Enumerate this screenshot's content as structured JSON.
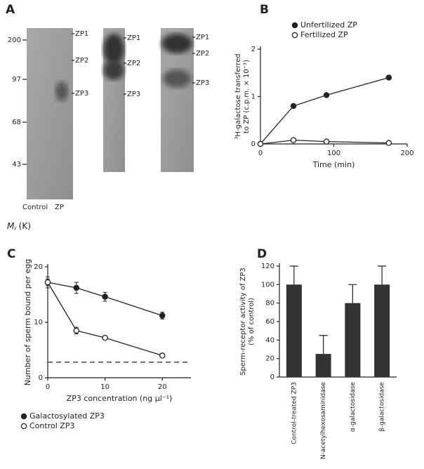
{
  "gel": {
    "label": "A",
    "mw_markers": [
      200,
      97,
      68,
      43
    ],
    "lanes": [
      {
        "bands": [
          "ZP1",
          "ZP2",
          "ZP3"
        ]
      },
      {
        "bands": [
          "ZP1",
          "ZP2",
          "ZP3"
        ]
      },
      {
        "bands": [
          "ZP1",
          "ZP2",
          "ZP3"
        ]
      }
    ],
    "lane_labels": [
      "Control",
      "ZP"
    ],
    "axis_symbol": "M",
    "axis_subscript": "r",
    "axis_unit": "(K)"
  },
  "chart_data": [
    {
      "type": "line",
      "label": "B",
      "xlabel": "Time (min)",
      "ylabel": [
        "³H-galactose transferred",
        "to ZP (c.p.m. × 10⁻³)"
      ],
      "x": [
        0,
        45,
        90,
        175
      ],
      "xlim": [
        0,
        200
      ],
      "xticks": [
        0,
        100,
        200
      ],
      "ylim": [
        0,
        2
      ],
      "yticks": [
        0,
        1,
        2
      ],
      "series": [
        {
          "name": "Unfertilized ZP",
          "color": "#222222",
          "marker": "filled",
          "values": [
            0,
            0.8,
            1.03,
            1.4
          ]
        },
        {
          "name": "Fertilized ZP",
          "color": "#222222",
          "marker": "open",
          "values": [
            0,
            0.08,
            0.05,
            0.02
          ]
        }
      ]
    },
    {
      "type": "line",
      "label": "C",
      "xlabel": "ZP3 concentration (ng µl⁻¹)",
      "ylabel": [
        "Number of sperm bound per egg"
      ],
      "x": [
        0,
        5,
        10,
        20
      ],
      "xlim": [
        0,
        25
      ],
      "xticks": [
        0,
        10,
        20
      ],
      "ylim": [
        0,
        20
      ],
      "yticks": [
        0,
        10,
        20
      ],
      "reference_line": {
        "y": 2.8,
        "style": "dashed"
      },
      "series": [
        {
          "name": "Galactosylated ZP3",
          "color": "#222222",
          "marker": "filled",
          "values": [
            17.2,
            16.2,
            14.6,
            11.2
          ],
          "errors": [
            1,
            1,
            0.8,
            0.6
          ]
        },
        {
          "name": "Control ZP3",
          "color": "#222222",
          "marker": "open",
          "values": [
            17.2,
            8.5,
            7.2,
            4
          ],
          "errors": [
            0.6,
            0.6,
            0.3,
            0.3
          ]
        }
      ]
    },
    {
      "type": "bar",
      "label": "D",
      "ylabel": [
        "Sperm-receptor activity of ZP3",
        "(% of control)"
      ],
      "categories": [
        "Control-treated ZP3",
        "N-acetylhexosaminidase",
        "α-galactosidase",
        "β-galactosidase"
      ],
      "values": [
        100,
        25,
        80,
        100
      ],
      "errors": [
        20,
        20,
        20,
        20
      ],
      "color": "#333333",
      "ylim": [
        0,
        120
      ],
      "yticks": [
        0,
        20,
        40,
        60,
        80,
        100,
        120
      ]
    }
  ]
}
